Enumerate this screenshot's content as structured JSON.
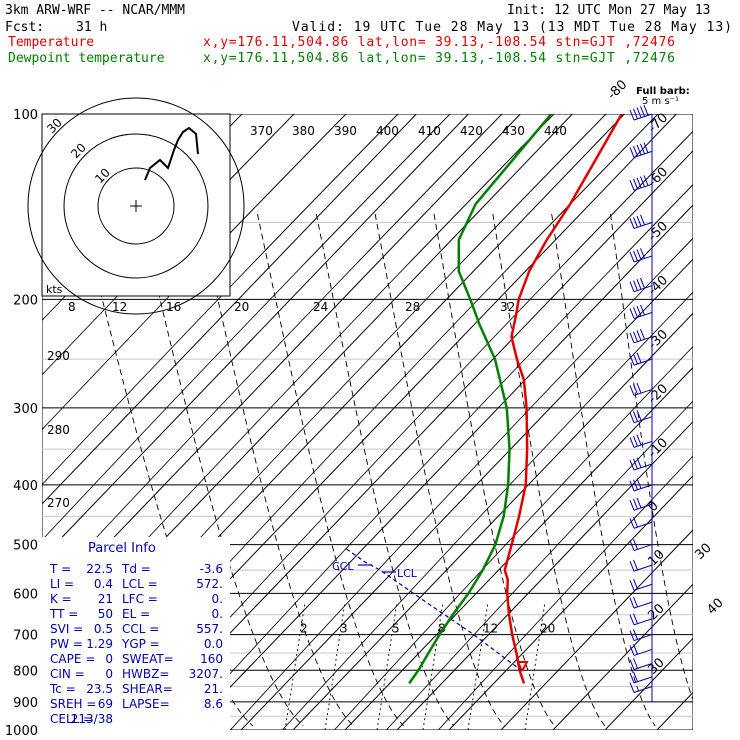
{
  "header": {
    "title": "3km ARW-WRF -- NCAR/MMM",
    "init": "Init: 12 UTC Mon 27 May 13",
    "fcst_label": "Fcst:",
    "fcst_value": "31 h",
    "valid": "Valid: 19 UTC Tue 28 May 13 (13 MDT Tue 28 May 13)",
    "temp_label": "Temperature",
    "temp_loc": "x,y=176.11,504.86    lat,lon= 39.13,-108.54   stn=GJT ,72476",
    "dew_label": "Dewpoint temperature",
    "dew_loc": "x,y=176.11,504.86    lat,lon= 39.13,-108.54   stn=GJT ,72476"
  },
  "barb_key": {
    "line1": "Full barb:",
    "line2": "5 m s⁻¹"
  },
  "colors": {
    "temperature": "#e00000",
    "dewpoint": "#008000",
    "parcel": "#0000b0",
    "hodograph": "#000000"
  },
  "parcel_info": {
    "title": "Parcel Info",
    "rows": [
      [
        "T  =",
        "22.5",
        "Td =",
        "-3.6"
      ],
      [
        "LI =",
        "0.4",
        "LCL =",
        "572."
      ],
      [
        "K  =",
        "21",
        "LFC =",
        "0."
      ],
      [
        "TT =",
        "50",
        "EL  =",
        "0."
      ],
      [
        "SVI =",
        "0.5",
        "CCL =",
        "557."
      ],
      [
        "PW =",
        "1.29",
        "YGP =",
        "0.0"
      ],
      [
        "CAPE =",
        "0",
        "SWEAT=",
        "160"
      ],
      [
        "CIN =",
        "0",
        "HWBZ=",
        "3207."
      ],
      [
        "Tc =",
        "23.5",
        "SHEAR=",
        "21."
      ],
      [
        "SREH =",
        "69",
        "LAPSE=",
        "8.6"
      ],
      [
        "CELL =",
        "213/38",
        "",
        ""
      ]
    ]
  },
  "hodograph": {
    "ring_labels": [
      "10",
      "20",
      "30"
    ],
    "unit": "kts"
  },
  "chart_data": {
    "type": "line",
    "title": "",
    "xlabel": "",
    "ylabel": "",
    "pressure_levels": [
      1000,
      900,
      800,
      700,
      600,
      500,
      400,
      300,
      200,
      100
    ],
    "isotherm_labels": [
      -80,
      -70,
      -60,
      -50,
      -40,
      -30,
      -20,
      -10,
      0,
      10,
      20,
      30,
      40
    ],
    "theta_labels": [
      370,
      380,
      390,
      400,
      410,
      420,
      430,
      440
    ],
    "theta_low_labels": [
      290,
      280,
      270
    ],
    "mixing_ratio_labels": [
      2,
      3,
      5,
      8,
      12,
      20
    ],
    "theta_e_labels": [
      8,
      12,
      16,
      20,
      24,
      28,
      32
    ],
    "markers": {
      "ccl": "CCL",
      "lcl": "LCL"
    },
    "series": [
      {
        "name": "Temperature",
        "points": [
          [
            840,
            22.5
          ],
          [
            800,
            19
          ],
          [
            750,
            15
          ],
          [
            700,
            10.5
          ],
          [
            650,
            6
          ],
          [
            600,
            1.5
          ],
          [
            570,
            -1
          ],
          [
            550,
            -3.5
          ],
          [
            500,
            -6.8
          ],
          [
            450,
            -10.5
          ],
          [
            400,
            -15
          ],
          [
            350,
            -21.5
          ],
          [
            300,
            -29.5
          ],
          [
            270,
            -35.5
          ],
          [
            250,
            -41
          ],
          [
            230,
            -46.5
          ],
          [
            210,
            -50
          ],
          [
            200,
            -52
          ],
          [
            180,
            -55
          ],
          [
            160,
            -57
          ],
          [
            140,
            -58.5
          ],
          [
            120,
            -61
          ],
          [
            100,
            -64
          ]
        ]
      },
      {
        "name": "Dewpoint temperature",
        "points": [
          [
            840,
            -3.6
          ],
          [
            800,
            -4
          ],
          [
            750,
            -5
          ],
          [
            700,
            -6
          ],
          [
            650,
            -6.8
          ],
          [
            600,
            -7.3
          ],
          [
            550,
            -8.5
          ],
          [
            500,
            -10.5
          ],
          [
            450,
            -14
          ],
          [
            400,
            -19
          ],
          [
            350,
            -25.5
          ],
          [
            300,
            -34
          ],
          [
            250,
            -46
          ],
          [
            220,
            -56
          ],
          [
            200,
            -63
          ],
          [
            180,
            -71
          ],
          [
            160,
            -77
          ],
          [
            140,
            -80
          ],
          [
            120,
            -80
          ],
          [
            100,
            -80
          ]
        ]
      }
    ],
    "wind_barbs": [
      {
        "p": 100,
        "kts": 45
      },
      {
        "p": 115,
        "kts": 45
      },
      {
        "p": 130,
        "kts": 45
      },
      {
        "p": 150,
        "kts": 40
      },
      {
        "p": 170,
        "kts": 40
      },
      {
        "p": 190,
        "kts": 35
      },
      {
        "p": 210,
        "kts": 35
      },
      {
        "p": 230,
        "kts": 35
      },
      {
        "p": 250,
        "kts": 30
      },
      {
        "p": 280,
        "kts": 30
      },
      {
        "p": 310,
        "kts": 30
      },
      {
        "p": 340,
        "kts": 25
      },
      {
        "p": 370,
        "kts": 25
      },
      {
        "p": 400,
        "kts": 25
      },
      {
        "p": 430,
        "kts": 25
      },
      {
        "p": 460,
        "kts": 20
      },
      {
        "p": 500,
        "kts": 20
      },
      {
        "p": 540,
        "kts": 20
      },
      {
        "p": 580,
        "kts": 20
      },
      {
        "p": 620,
        "kts": 20
      },
      {
        "p": 660,
        "kts": 15
      },
      {
        "p": 700,
        "kts": 15
      },
      {
        "p": 740,
        "kts": 15
      },
      {
        "p": 780,
        "kts": 15
      },
      {
        "p": 820,
        "kts": 15
      },
      {
        "p": 850,
        "kts": 10
      }
    ],
    "hodograph_points": [
      [
        0,
        0
      ],
      [
        2,
        1
      ],
      [
        4,
        3
      ],
      [
        3,
        5
      ],
      [
        5,
        6
      ],
      [
        6,
        8
      ],
      [
        5,
        11
      ],
      [
        7,
        13
      ],
      [
        8,
        12
      ],
      [
        9,
        14
      ],
      [
        10,
        13
      ]
    ]
  }
}
